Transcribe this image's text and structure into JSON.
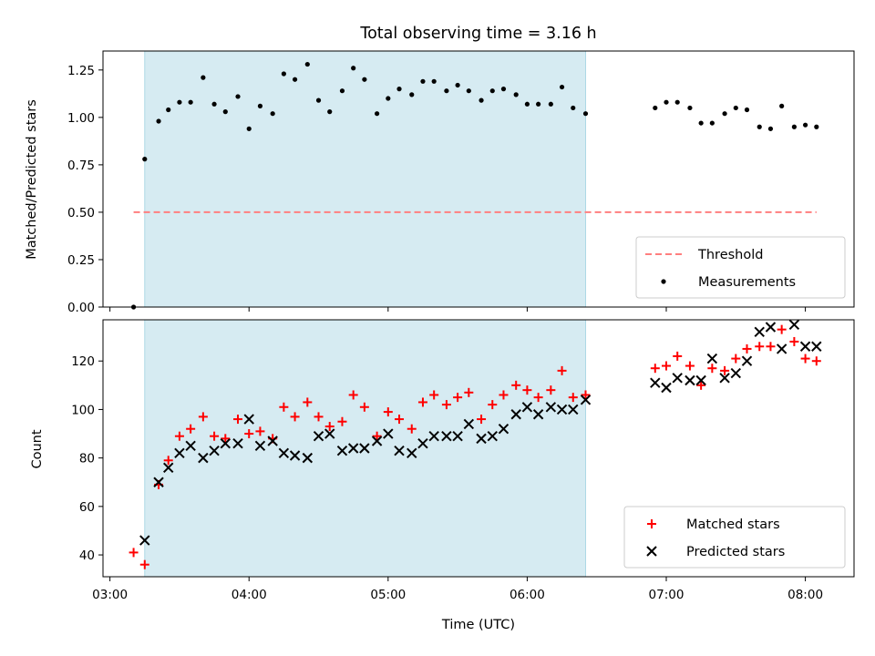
{
  "chart_data": {
    "title": "Total observing time = 3.16 h",
    "xlabel": "Time (UTC)",
    "x_unit": "hours UTC",
    "xlim": [
      2.95,
      8.35
    ],
    "xticks": [
      3,
      4,
      5,
      6,
      7,
      8
    ],
    "xtick_labels": [
      "03:00",
      "04:00",
      "05:00",
      "06:00",
      "07:00",
      "08:00"
    ],
    "shaded_interval": {
      "x": [
        3.25,
        6.42
      ],
      "color": "#add8e6"
    },
    "panels": [
      {
        "type": "scatter",
        "ylabel": "Matched/Predicted stars",
        "ylim": [
          0,
          1.35
        ],
        "yticks": [
          0,
          0.25,
          0.5,
          0.75,
          1.0,
          1.25
        ],
        "ytick_labels": [
          "0.00",
          "0.25",
          "0.50",
          "0.75",
          "1.00",
          "1.25"
        ],
        "legend": {
          "placement": "lower right",
          "entries": [
            "Threshold",
            "Measurements"
          ]
        },
        "threshold": {
          "name": "Threshold",
          "y": 0.5,
          "x": [
            3.17,
            8.08
          ],
          "color": "#ff7f7f",
          "style": "dashed"
        },
        "series": [
          {
            "name": "Measurements",
            "marker": "dot",
            "color": "#000000",
            "points": [
              [
                3.17,
                0.0
              ],
              [
                3.25,
                0.78
              ],
              [
                3.35,
                0.98
              ],
              [
                3.42,
                1.04
              ],
              [
                3.5,
                1.08
              ],
              [
                3.58,
                1.08
              ],
              [
                3.67,
                1.21
              ],
              [
                3.75,
                1.07
              ],
              [
                3.83,
                1.03
              ],
              [
                3.92,
                1.11
              ],
              [
                4.0,
                0.94
              ],
              [
                4.08,
                1.06
              ],
              [
                4.17,
                1.02
              ],
              [
                4.25,
                1.23
              ],
              [
                4.33,
                1.2
              ],
              [
                4.42,
                1.28
              ],
              [
                4.5,
                1.09
              ],
              [
                4.58,
                1.03
              ],
              [
                4.67,
                1.14
              ],
              [
                4.75,
                1.26
              ],
              [
                4.83,
                1.2
              ],
              [
                4.92,
                1.02
              ],
              [
                5.0,
                1.1
              ],
              [
                5.08,
                1.15
              ],
              [
                5.17,
                1.12
              ],
              [
                5.25,
                1.19
              ],
              [
                5.33,
                1.19
              ],
              [
                5.42,
                1.14
              ],
              [
                5.5,
                1.17
              ],
              [
                5.58,
                1.14
              ],
              [
                5.67,
                1.09
              ],
              [
                5.75,
                1.14
              ],
              [
                5.83,
                1.15
              ],
              [
                5.92,
                1.12
              ],
              [
                6.0,
                1.07
              ],
              [
                6.08,
                1.07
              ],
              [
                6.17,
                1.07
              ],
              [
                6.25,
                1.16
              ],
              [
                6.33,
                1.05
              ],
              [
                6.42,
                1.02
              ],
              [
                6.92,
                1.05
              ],
              [
                7.0,
                1.08
              ],
              [
                7.08,
                1.08
              ],
              [
                7.17,
                1.05
              ],
              [
                7.25,
                0.97
              ],
              [
                7.33,
                0.97
              ],
              [
                7.42,
                1.02
              ],
              [
                7.5,
                1.05
              ],
              [
                7.58,
                1.04
              ],
              [
                7.67,
                0.95
              ],
              [
                7.75,
                0.94
              ],
              [
                7.83,
                1.06
              ],
              [
                7.92,
                0.95
              ],
              [
                8.0,
                0.96
              ],
              [
                8.08,
                0.95
              ]
            ]
          }
        ]
      },
      {
        "type": "scatter",
        "ylabel": "Count",
        "ylim": [
          31,
          137
        ],
        "yticks": [
          40,
          60,
          80,
          100,
          120
        ],
        "ytick_labels": [
          "40",
          "60",
          "80",
          "100",
          "120"
        ],
        "legend": {
          "placement": "lower right",
          "entries": [
            "Matched stars",
            "Predicted stars"
          ]
        },
        "series": [
          {
            "name": "Matched stars",
            "marker": "plus",
            "color": "#ff0000",
            "points": [
              [
                3.17,
                41
              ],
              [
                3.25,
                36
              ],
              [
                3.35,
                69
              ],
              [
                3.42,
                79
              ],
              [
                3.5,
                89
              ],
              [
                3.58,
                92
              ],
              [
                3.67,
                97
              ],
              [
                3.75,
                89
              ],
              [
                3.83,
                88
              ],
              [
                3.92,
                96
              ],
              [
                4.0,
                90
              ],
              [
                4.08,
                91
              ],
              [
                4.17,
                88
              ],
              [
                4.25,
                101
              ],
              [
                4.33,
                97
              ],
              [
                4.42,
                103
              ],
              [
                4.5,
                97
              ],
              [
                4.58,
                93
              ],
              [
                4.67,
                95
              ],
              [
                4.75,
                106
              ],
              [
                4.83,
                101
              ],
              [
                4.92,
                89
              ],
              [
                5.0,
                99
              ],
              [
                5.08,
                96
              ],
              [
                5.17,
                92
              ],
              [
                5.25,
                103
              ],
              [
                5.33,
                106
              ],
              [
                5.42,
                102
              ],
              [
                5.5,
                105
              ],
              [
                5.58,
                107
              ],
              [
                5.67,
                96
              ],
              [
                5.75,
                102
              ],
              [
                5.83,
                106
              ],
              [
                5.92,
                110
              ],
              [
                6.0,
                108
              ],
              [
                6.08,
                105
              ],
              [
                6.17,
                108
              ],
              [
                6.25,
                116
              ],
              [
                6.33,
                105
              ],
              [
                6.42,
                106
              ],
              [
                6.92,
                117
              ],
              [
                7.0,
                118
              ],
              [
                7.08,
                122
              ],
              [
                7.17,
                118
              ],
              [
                7.25,
                110
              ],
              [
                7.33,
                117
              ],
              [
                7.42,
                116
              ],
              [
                7.5,
                121
              ],
              [
                7.58,
                125
              ],
              [
                7.67,
                126
              ],
              [
                7.75,
                126
              ],
              [
                7.83,
                133
              ],
              [
                7.92,
                128
              ],
              [
                8.0,
                121
              ],
              [
                8.08,
                120
              ]
            ]
          },
          {
            "name": "Predicted stars",
            "marker": "x",
            "color": "#000000",
            "points": [
              [
                3.25,
                46
              ],
              [
                3.35,
                70
              ],
              [
                3.42,
                76
              ],
              [
                3.5,
                82
              ],
              [
                3.58,
                85
              ],
              [
                3.67,
                80
              ],
              [
                3.75,
                83
              ],
              [
                3.83,
                86
              ],
              [
                3.92,
                86
              ],
              [
                4.0,
                96
              ],
              [
                4.08,
                85
              ],
              [
                4.17,
                87
              ],
              [
                4.25,
                82
              ],
              [
                4.33,
                81
              ],
              [
                4.42,
                80
              ],
              [
                4.5,
                89
              ],
              [
                4.58,
                90
              ],
              [
                4.67,
                83
              ],
              [
                4.75,
                84
              ],
              [
                4.83,
                84
              ],
              [
                4.92,
                87
              ],
              [
                5.0,
                90
              ],
              [
                5.08,
                83
              ],
              [
                5.17,
                82
              ],
              [
                5.25,
                86
              ],
              [
                5.33,
                89
              ],
              [
                5.42,
                89
              ],
              [
                5.5,
                89
              ],
              [
                5.58,
                94
              ],
              [
                5.67,
                88
              ],
              [
                5.75,
                89
              ],
              [
                5.83,
                92
              ],
              [
                5.92,
                98
              ],
              [
                6.0,
                101
              ],
              [
                6.08,
                98
              ],
              [
                6.17,
                101
              ],
              [
                6.25,
                100
              ],
              [
                6.33,
                100
              ],
              [
                6.42,
                104
              ],
              [
                6.92,
                111
              ],
              [
                7.0,
                109
              ],
              [
                7.08,
                113
              ],
              [
                7.17,
                112
              ],
              [
                7.25,
                112
              ],
              [
                7.33,
                121
              ],
              [
                7.42,
                113
              ],
              [
                7.5,
                115
              ],
              [
                7.58,
                120
              ],
              [
                7.67,
                132
              ],
              [
                7.75,
                134
              ],
              [
                7.83,
                125
              ],
              [
                7.92,
                135
              ],
              [
                8.0,
                126
              ],
              [
                8.08,
                126
              ]
            ]
          }
        ]
      }
    ]
  }
}
